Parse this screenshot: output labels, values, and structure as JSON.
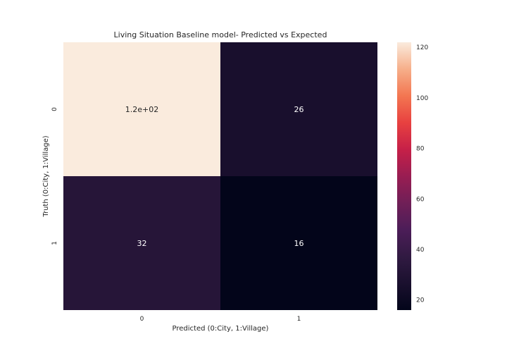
{
  "chart_data": {
    "type": "heatmap",
    "title": "Living Situation Baseline model- Predicted vs Expected",
    "xlabel": "Predicted (0:City, 1:Village)",
    "ylabel": "Truth (0:City, 1:Village)",
    "x_categories": [
      "0",
      "1"
    ],
    "y_categories": [
      "0",
      "1"
    ],
    "values": [
      [
        122,
        26
      ],
      [
        32,
        16
      ]
    ],
    "cell_labels": [
      [
        "1.2e+02",
        "26"
      ],
      [
        "32",
        "16"
      ]
    ],
    "colorbar": {
      "range": [
        16,
        122
      ],
      "ticks": [
        20,
        40,
        60,
        80,
        100,
        120
      ],
      "tick_labels": [
        "20",
        "40",
        "60",
        "80",
        "100",
        "120"
      ]
    },
    "colormap": "rocket",
    "grid": false
  }
}
